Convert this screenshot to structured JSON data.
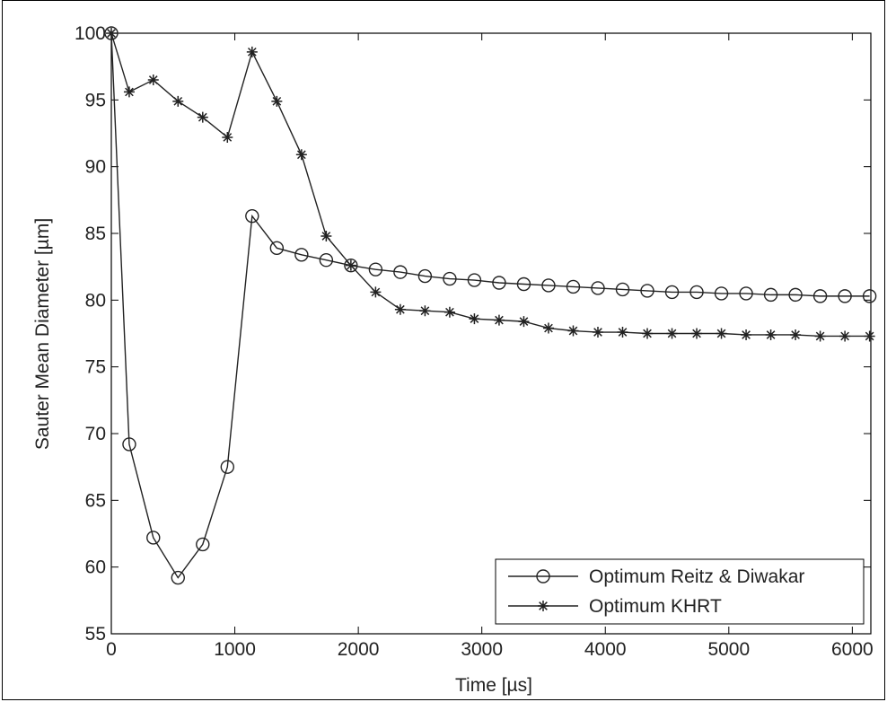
{
  "chart_data": {
    "type": "line",
    "xlabel": "Time [µs]",
    "ylabel": "Sauter Mean Diameter [µm]",
    "xlim": [
      0,
      6150
    ],
    "ylim": [
      55,
      100
    ],
    "xticks": [
      0,
      1000,
      2000,
      3000,
      4000,
      5000,
      6000
    ],
    "yticks": [
      55,
      60,
      65,
      70,
      75,
      80,
      85,
      90,
      95,
      100
    ],
    "grid": false,
    "legend_position": "bottom-right",
    "series": [
      {
        "name": "Optimum Reitz & Diwakar",
        "marker": "circle",
        "x": [
          0,
          145,
          340,
          540,
          740,
          940,
          1140,
          1340,
          1540,
          1740,
          1940,
          2140,
          2340,
          2540,
          2740,
          2940,
          3140,
          3340,
          3540,
          3740,
          3940,
          4140,
          4340,
          4540,
          4740,
          4940,
          5140,
          5340,
          5540,
          5740,
          5940,
          6140
        ],
        "y": [
          100,
          69.2,
          62.2,
          59.2,
          61.7,
          67.5,
          86.3,
          83.9,
          83.4,
          83.0,
          82.6,
          82.3,
          82.1,
          81.8,
          81.6,
          81.5,
          81.3,
          81.2,
          81.1,
          81.0,
          80.9,
          80.8,
          80.7,
          80.6,
          80.6,
          80.5,
          80.5,
          80.4,
          80.4,
          80.3,
          80.3,
          80.3
        ]
      },
      {
        "name": "Optimum KHRT",
        "marker": "star",
        "x": [
          0,
          145,
          340,
          540,
          740,
          940,
          1140,
          1340,
          1540,
          1740,
          1940,
          2140,
          2340,
          2540,
          2740,
          2940,
          3140,
          3340,
          3540,
          3740,
          3940,
          4140,
          4340,
          4540,
          4740,
          4940,
          5140,
          5340,
          5540,
          5740,
          5940,
          6140
        ],
        "y": [
          100,
          95.6,
          96.5,
          94.9,
          93.7,
          92.2,
          98.6,
          94.9,
          90.9,
          84.8,
          82.6,
          80.6,
          79.3,
          79.2,
          79.1,
          78.6,
          78.5,
          78.4,
          77.9,
          77.7,
          77.6,
          77.6,
          77.5,
          77.5,
          77.5,
          77.5,
          77.4,
          77.4,
          77.4,
          77.3,
          77.3,
          77.3
        ]
      }
    ]
  }
}
